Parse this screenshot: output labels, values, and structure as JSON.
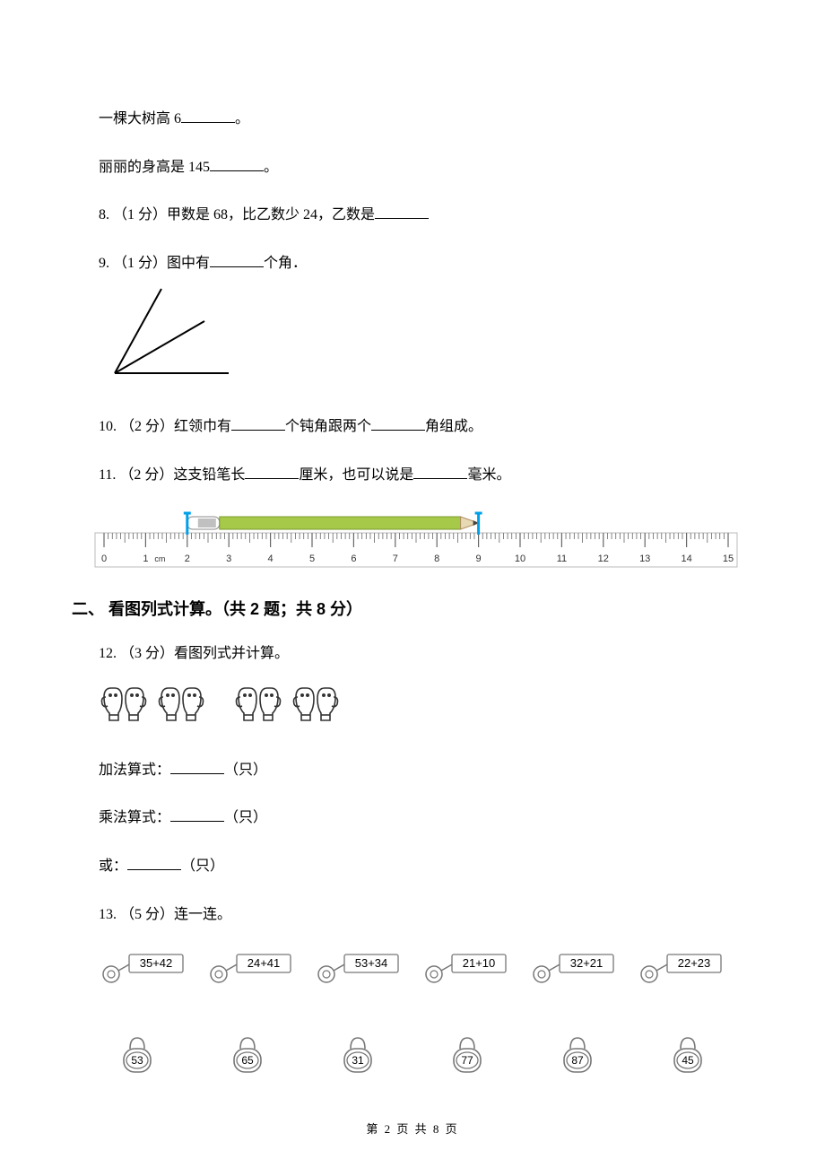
{
  "q7": {
    "line1_pre": "一棵大树高 6",
    "line1_post": "。",
    "line2_pre": "丽丽的身高是 145",
    "line2_post": "。"
  },
  "q8": {
    "text_pre": "8. （1 分）甲数是 68，比乙数少 24，乙数是"
  },
  "q9": {
    "text_pre": "9. （1 分）图中有",
    "text_post": "个角．",
    "figure": {
      "stroke": "#000000",
      "stroke_width": 2
    }
  },
  "q10": {
    "pre": "10. （2 分）红领巾有",
    "mid": "个钝角跟两个",
    "post": "角组成。"
  },
  "q11": {
    "pre": "11. （2 分）这支铅笔长",
    "mid": "厘米，也可以说是",
    "post": "毫米。",
    "ruler": {
      "pencil_start_cm": 2,
      "pencil_end_cm": 9,
      "length_cm": 15,
      "pencil_colors": {
        "ferrule": "#c0c0c0",
        "eraser": "#c97f5a",
        "body": "#a7c94a",
        "tip": "#444444"
      },
      "bracket_color": "#00a0e9",
      "tick_color": "#666666",
      "number_color": "#333333",
      "text_fontsize": 11
    }
  },
  "section2": {
    "heading": "二、 看图列式计算。（共 2 题；共 8 分）"
  },
  "q12": {
    "title": "12. （3 分）看图列式并计算。",
    "mitten_outline": "#333333",
    "pair_count": 4,
    "add_label_pre": "加法算式：",
    "unit": "（只）",
    "mul_label_pre": "乘法算式：",
    "or_label_pre": "或："
  },
  "q13": {
    "title": "13. （5 分）连一连。",
    "keys": [
      "35+42",
      "24+41",
      "53+34",
      "21+10",
      "32+21",
      "22+23"
    ],
    "key_stroke": "#777777",
    "key_fontsize": 13,
    "locks": [
      "53",
      "65",
      "31",
      "77",
      "87",
      "45"
    ],
    "lock_stroke": "#777777",
    "lock_fontsize": 12
  },
  "footer": {
    "text": "第 2 页 共 8 页"
  }
}
